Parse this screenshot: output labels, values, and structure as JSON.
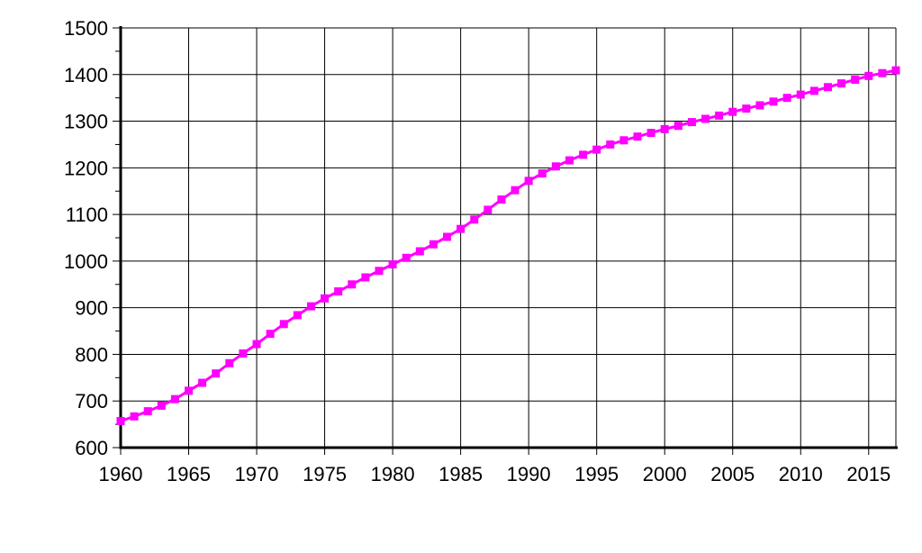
{
  "chart_data": {
    "type": "line",
    "title": "",
    "xlabel": "",
    "ylabel": "",
    "xlim": [
      1960,
      2017
    ],
    "ylim": [
      600,
      1500
    ],
    "x_ticks": [
      1960,
      1965,
      1970,
      1975,
      1980,
      1985,
      1990,
      1995,
      2000,
      2005,
      2010,
      2015
    ],
    "y_ticks": [
      600,
      700,
      800,
      900,
      1000,
      1100,
      1200,
      1300,
      1400,
      1500
    ],
    "grid": true,
    "legend": "none",
    "colors": {
      "series": "#ff00ff",
      "grid": "#000000",
      "axis": "#000000",
      "background": "#ffffff"
    },
    "series": [
      {
        "x": [
          1960,
          1961,
          1962,
          1963,
          1964,
          1965,
          1966,
          1967,
          1968,
          1969,
          1970,
          1971,
          1972,
          1973,
          1974,
          1975,
          1976,
          1977,
          1978,
          1979,
          1980,
          1981,
          1982,
          1983,
          1984,
          1985,
          1986,
          1987,
          1988,
          1989,
          1990,
          1991,
          1992,
          1993,
          1994,
          1995,
          1996,
          1997,
          1998,
          1999,
          2000,
          2001,
          2002,
          2003,
          2004,
          2005,
          2006,
          2007,
          2008,
          2009,
          2010,
          2011,
          2012,
          2013,
          2014,
          2015,
          2016,
          2017
        ],
        "values": [
          657,
          667,
          678,
          690,
          704,
          722,
          739,
          759,
          781,
          802,
          822,
          844,
          865,
          884,
          903,
          920,
          935,
          950,
          965,
          979,
          993,
          1007,
          1021,
          1036,
          1052,
          1069,
          1089,
          1110,
          1132,
          1152,
          1172,
          1188,
          1203,
          1216,
          1228,
          1239,
          1250,
          1259,
          1267,
          1275,
          1283,
          1290,
          1298,
          1305,
          1312,
          1320,
          1327,
          1334,
          1342,
          1350,
          1357,
          1365,
          1373,
          1381,
          1389,
          1397,
          1403,
          1409
        ]
      }
    ]
  }
}
